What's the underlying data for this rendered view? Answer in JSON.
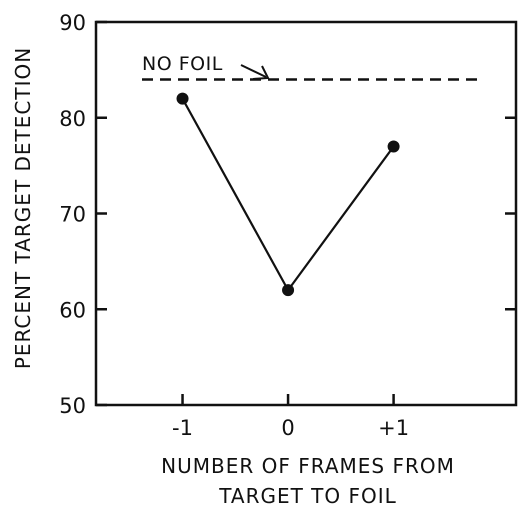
{
  "chart_data": {
    "type": "line",
    "title": "",
    "xlabel_lines": [
      "NUMBER OF FRAMES FROM",
      "TARGET TO FOIL"
    ],
    "ylabel": "PERCENT TARGET DETECTION",
    "categories": [
      "-1",
      "0",
      "+1"
    ],
    "x": [
      -1,
      0,
      1
    ],
    "xlim": [
      -1.82,
      2.16
    ],
    "ylim": [
      50,
      90
    ],
    "yticks": [
      50,
      60,
      70,
      80,
      90
    ],
    "yticklabels": [
      "50",
      "60",
      "70",
      "80",
      "90"
    ],
    "grid": false,
    "series": [
      {
        "values": [
          82,
          62,
          77
        ]
      }
    ],
    "reference_line": {
      "y": 84,
      "label": "NO FOIL",
      "style": "dashed"
    }
  }
}
